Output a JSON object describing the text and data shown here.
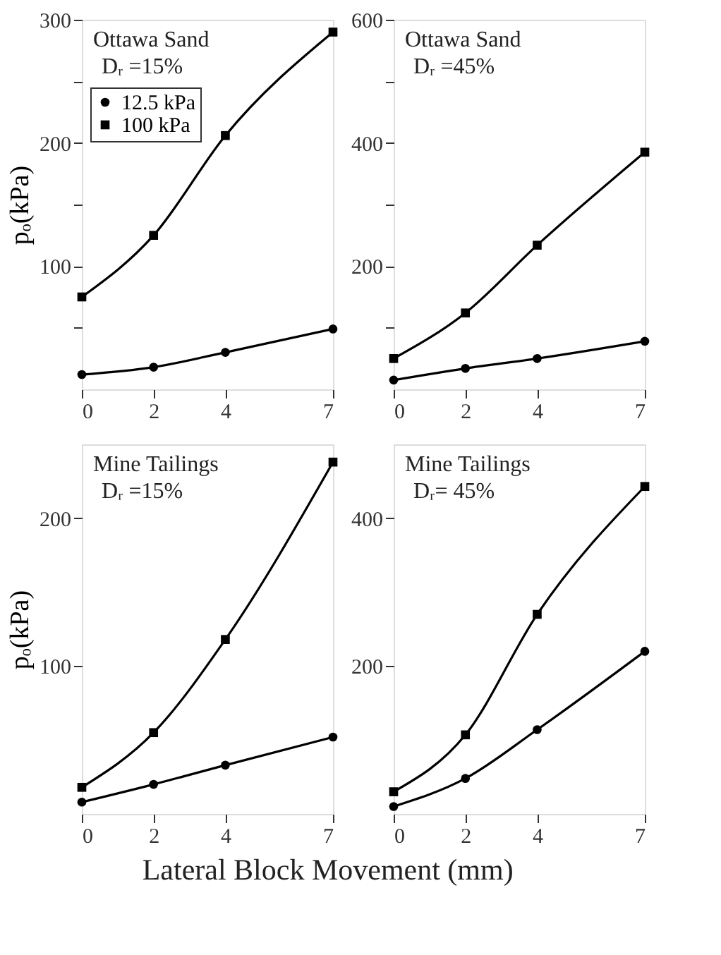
{
  "chart_data": [
    {
      "type": "line",
      "ylabel": "pₒ(kPa)",
      "annotations": [
        "Ottawa Sand",
        "Dᵣ =15%"
      ],
      "x": [
        0,
        2,
        4,
        7
      ],
      "xlim": [
        0,
        7
      ],
      "xticks": [
        0,
        2,
        4,
        7
      ],
      "ylim": [
        0,
        300
      ],
      "yticks": [
        {
          "value": 50,
          "label": null
        },
        100,
        {
          "value": 150,
          "label": null
        },
        200,
        {
          "value": 250,
          "label": null
        },
        300
      ],
      "legend": "top left",
      "grid": false,
      "series": [
        {
          "name": "12.5 kPa",
          "color": "#000000",
          "marker": "circle",
          "values": [
            12,
            18,
            30,
            49
          ]
        },
        {
          "name": "100 kPa",
          "color": "#000000",
          "marker": "square",
          "values": [
            75,
            125,
            206,
            290
          ]
        }
      ]
    },
    {
      "type": "line",
      "annotations": [
        "Ottawa Sand",
        "Dᵣ =45%"
      ],
      "x": [
        0,
        2,
        4,
        7
      ],
      "xlim": [
        0,
        7
      ],
      "xticks": [
        0,
        2,
        4,
        7
      ],
      "ylim": [
        0,
        600
      ],
      "yticks": [
        {
          "value": 100,
          "label": null
        },
        200,
        {
          "value": 300,
          "label": null
        },
        400,
        {
          "value": 500,
          "label": null
        },
        600
      ],
      "grid": false,
      "series": [
        {
          "color": "#000000",
          "marker": "circle",
          "values": [
            15,
            34,
            50,
            78
          ]
        },
        {
          "color": "#000000",
          "marker": "square",
          "values": [
            50,
            124,
            234,
            385
          ]
        }
      ]
    },
    {
      "type": "line",
      "ylabel": "pₒ(kPa)",
      "xlabel": "Lateral Block Movement   (mm)",
      "annotations": [
        "Mine Tailings",
        "Dᵣ =15%"
      ],
      "x": [
        0,
        2,
        4,
        7
      ],
      "xlim": [
        0,
        7
      ],
      "xticks": [
        0,
        2,
        4,
        7
      ],
      "ylim": [
        0,
        250
      ],
      "yticks": [
        100,
        200
      ],
      "grid": false,
      "series": [
        {
          "color": "#000000",
          "marker": "circle",
          "values": [
            8,
            20,
            33,
            52
          ]
        },
        {
          "color": "#000000",
          "marker": "square",
          "values": [
            18,
            55,
            118,
            238
          ]
        }
      ]
    },
    {
      "type": "line",
      "annotations": [
        "Mine Tailings",
        "Dᵣ= 45%"
      ],
      "x": [
        0,
        2,
        4,
        7
      ],
      "xlim": [
        0,
        7
      ],
      "xticks": [
        0,
        2,
        4,
        7
      ],
      "ylim": [
        0,
        500
      ],
      "yticks": [
        200,
        400
      ],
      "grid": false,
      "series": [
        {
          "color": "#000000",
          "marker": "circle",
          "values": [
            10,
            48,
            114,
            220
          ]
        },
        {
          "color": "#000000",
          "marker": "square",
          "values": [
            30,
            107,
            270,
            443
          ]
        }
      ]
    }
  ]
}
